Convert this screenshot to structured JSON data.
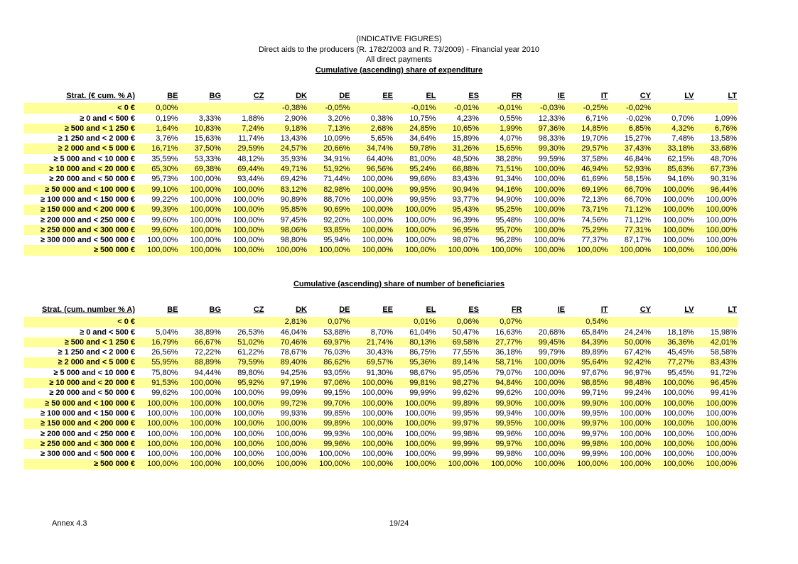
{
  "header": {
    "line1": "(INDICATIVE FIGURES)",
    "line2": "Direct aids to the producers (R. 1782/2003 and R. 73/2009) - Financial year 2010",
    "line3": "All direct payments",
    "title": "Cumulative (ascending) share of expenditure"
  },
  "countries": [
    "BE",
    "BG",
    "CZ",
    "DK",
    "DE",
    "EE",
    "EL",
    "ES",
    "FR",
    "IE",
    "IT",
    "CY",
    "LV",
    "LT"
  ],
  "table1": {
    "label_header": "Strat. (€ cum. % A)",
    "rows": [
      {
        "label": "< 0 €",
        "values": [
          "0,00%",
          "",
          "",
          "-0,38%",
          "-0,05%",
          "",
          "-0,01%",
          "-0,01%",
          "-0,01%",
          "-0,03%",
          "-0,25%",
          "-0,02%",
          "",
          ""
        ]
      },
      {
        "label": "≥ 0 and <  500 €",
        "values": [
          "0,19%",
          "3,33%",
          "1,88%",
          "2,90%",
          "3,20%",
          "0,38%",
          "10,75%",
          "4,23%",
          "0,55%",
          "12,33%",
          "6,71%",
          "-0,02%",
          "0,70%",
          "1,09%"
        ]
      },
      {
        "label": "≥ 500 and < 1 250 €",
        "values": [
          "1,64%",
          "10,83%",
          "7,24%",
          "9,18%",
          "7,13%",
          "2,68%",
          "24,85%",
          "10,65%",
          "1,99%",
          "97,36%",
          "14,85%",
          "6,85%",
          "4,32%",
          "6,76%"
        ]
      },
      {
        "label": "≥ 1 250 and < 2 000 €",
        "values": [
          "3,76%",
          "15,63%",
          "11,74%",
          "13,43%",
          "10,09%",
          "5,65%",
          "34,64%",
          "15,89%",
          "4,07%",
          "98,33%",
          "19,70%",
          "15,27%",
          "7,48%",
          "13,58%"
        ]
      },
      {
        "label": "≥ 2 000 and < 5 000 €",
        "values": [
          "16,71%",
          "37,50%",
          "29,59%",
          "24,57%",
          "20,66%",
          "34,74%",
          "59,78%",
          "31,26%",
          "15,65%",
          "99,30%",
          "29,57%",
          "37,43%",
          "33,18%",
          "33,68%"
        ]
      },
      {
        "label": "≥ 5 000 and < 10 000 €",
        "values": [
          "35,59%",
          "53,33%",
          "48,12%",
          "35,93%",
          "34,91%",
          "64,40%",
          "81,00%",
          "48,50%",
          "38,28%",
          "99,59%",
          "37,58%",
          "46,84%",
          "62,15%",
          "48,70%"
        ]
      },
      {
        "label": "≥ 10 000 and < 20 000 €",
        "values": [
          "65,30%",
          "69,38%",
          "69,44%",
          "49,71%",
          "51,92%",
          "96,56%",
          "95,24%",
          "66,88%",
          "71,51%",
          "100,00%",
          "46,94%",
          "52,93%",
          "85,63%",
          "67,73%"
        ]
      },
      {
        "label": "≥ 20 000 and < 50 000 €",
        "values": [
          "95,73%",
          "100,00%",
          "93,44%",
          "69,42%",
          "71,44%",
          "100,00%",
          "99,66%",
          "83,43%",
          "91,34%",
          "100,00%",
          "61,69%",
          "58,15%",
          "94,16%",
          "90,31%"
        ]
      },
      {
        "label": "≥ 50 000 and < 100 000 €",
        "values": [
          "99,10%",
          "100,00%",
          "100,00%",
          "83,12%",
          "82,98%",
          "100,00%",
          "99,95%",
          "90,94%",
          "94,16%",
          "100,00%",
          "69,19%",
          "66,70%",
          "100,00%",
          "96,44%"
        ]
      },
      {
        "label": "≥ 100 000 and < 150 000 €",
        "values": [
          "99,22%",
          "100,00%",
          "100,00%",
          "90,89%",
          "88,70%",
          "100,00%",
          "99,95%",
          "93,77%",
          "94,90%",
          "100,00%",
          "72,13%",
          "66,70%",
          "100,00%",
          "100,00%"
        ]
      },
      {
        "label": "≥ 150 000 and < 200 000 €",
        "values": [
          "99,39%",
          "100,00%",
          "100,00%",
          "95,85%",
          "90,69%",
          "100,00%",
          "100,00%",
          "95,43%",
          "95,25%",
          "100,00%",
          "73,71%",
          "71,12%",
          "100,00%",
          "100,00%"
        ]
      },
      {
        "label": "≥ 200 000 and < 250 000 €",
        "values": [
          "99,60%",
          "100,00%",
          "100,00%",
          "97,45%",
          "92,20%",
          "100,00%",
          "100,00%",
          "96,39%",
          "95,48%",
          "100,00%",
          "74,56%",
          "71,12%",
          "100,00%",
          "100,00%"
        ]
      },
      {
        "label": "≥ 250 000 and < 300 000 €",
        "values": [
          "99,60%",
          "100,00%",
          "100,00%",
          "98,06%",
          "93,85%",
          "100,00%",
          "100,00%",
          "96,95%",
          "95,70%",
          "100,00%",
          "75,29%",
          "77,31%",
          "100,00%",
          "100,00%"
        ]
      },
      {
        "label": "≥ 300 000 and < 500 000 €",
        "values": [
          "100,00%",
          "100,00%",
          "100,00%",
          "98,80%",
          "95,94%",
          "100,00%",
          "100,00%",
          "98,07%",
          "96,28%",
          "100,00%",
          "77,37%",
          "87,17%",
          "100,00%",
          "100,00%"
        ]
      },
      {
        "label": "≥ 500 000 €",
        "values": [
          "100,00%",
          "100,00%",
          "100,00%",
          "100,00%",
          "100,00%",
          "100,00%",
          "100,00%",
          "100,00%",
          "100,00%",
          "100,00%",
          "100,00%",
          "100,00%",
          "100,00%",
          "100,00%"
        ]
      }
    ]
  },
  "table2": {
    "title": "Cumulative (ascending) share of number of beneficiaries",
    "label_header": "Strat. (cum. number % A)",
    "rows": [
      {
        "label": "< 0 €",
        "values": [
          "",
          "",
          "",
          "2,81%",
          "0,07%",
          "",
          "0,01%",
          "0,06%",
          "0,07%",
          "",
          "0,54%",
          "",
          "",
          ""
        ]
      },
      {
        "label": "≥ 0 and <  500 €",
        "values": [
          "5,04%",
          "38,89%",
          "26,53%",
          "46,04%",
          "53,88%",
          "8,70%",
          "61,04%",
          "50,47%",
          "16,63%",
          "20,68%",
          "65,84%",
          "24,24%",
          "18,18%",
          "15,98%"
        ]
      },
      {
        "label": "≥ 500 and < 1 250 €",
        "values": [
          "16,79%",
          "66,67%",
          "51,02%",
          "70,46%",
          "69,97%",
          "21,74%",
          "80,13%",
          "69,58%",
          "27,77%",
          "99,45%",
          "84,39%",
          "50,00%",
          "36,36%",
          "42,01%"
        ]
      },
      {
        "label": "≥ 1 250 and < 2 000 €",
        "values": [
          "26,56%",
          "72,22%",
          "61,22%",
          "78,67%",
          "76,03%",
          "30,43%",
          "86,75%",
          "77,55%",
          "36,18%",
          "99,79%",
          "89,89%",
          "67,42%",
          "45,45%",
          "58,58%"
        ]
      },
      {
        "label": "≥ 2 000 and < 5 000 €",
        "values": [
          "55,95%",
          "88,89%",
          "79,59%",
          "89,40%",
          "86,62%",
          "69,57%",
          "95,36%",
          "89,14%",
          "58,71%",
          "100,00%",
          "95,64%",
          "92,42%",
          "77,27%",
          "83,43%"
        ]
      },
      {
        "label": "≥ 5 000 and < 10 000 €",
        "values": [
          "75,80%",
          "94,44%",
          "89,80%",
          "94,25%",
          "93,05%",
          "91,30%",
          "98,67%",
          "95,05%",
          "79,07%",
          "100,00%",
          "97,67%",
          "96,97%",
          "95,45%",
          "91,72%"
        ]
      },
      {
        "label": "≥ 10 000 and < 20 000 €",
        "values": [
          "91,53%",
          "100,00%",
          "95,92%",
          "97,19%",
          "97,06%",
          "100,00%",
          "99,81%",
          "98,27%",
          "94,84%",
          "100,00%",
          "98,85%",
          "98,48%",
          "100,00%",
          "96,45%"
        ]
      },
      {
        "label": "≥ 20 000 and < 50 000 €",
        "values": [
          "99,62%",
          "100,00%",
          "100,00%",
          "99,09%",
          "99,15%",
          "100,00%",
          "99,99%",
          "99,62%",
          "99,62%",
          "100,00%",
          "99,71%",
          "99,24%",
          "100,00%",
          "99,41%"
        ]
      },
      {
        "label": "≥ 50 000 and < 100 000 €",
        "values": [
          "100,00%",
          "100,00%",
          "100,00%",
          "99,72%",
          "99,70%",
          "100,00%",
          "100,00%",
          "99,89%",
          "99,90%",
          "100,00%",
          "99,90%",
          "100,00%",
          "100,00%",
          "100,00%"
        ]
      },
      {
        "label": "≥ 100 000 and < 150 000 €",
        "values": [
          "100,00%",
          "100,00%",
          "100,00%",
          "99,93%",
          "99,85%",
          "100,00%",
          "100,00%",
          "99,95%",
          "99,94%",
          "100,00%",
          "99,95%",
          "100,00%",
          "100,00%",
          "100,00%"
        ]
      },
      {
        "label": "≥ 150 000 and < 200 000 €",
        "values": [
          "100,00%",
          "100,00%",
          "100,00%",
          "100,00%",
          "99,89%",
          "100,00%",
          "100,00%",
          "99,97%",
          "99,95%",
          "100,00%",
          "99,97%",
          "100,00%",
          "100,00%",
          "100,00%"
        ]
      },
      {
        "label": "≥ 200 000 and < 250 000 €",
        "values": [
          "100,00%",
          "100,00%",
          "100,00%",
          "100,00%",
          "99,93%",
          "100,00%",
          "100,00%",
          "99,98%",
          "99,96%",
          "100,00%",
          "99,97%",
          "100,00%",
          "100,00%",
          "100,00%"
        ]
      },
      {
        "label": "≥ 250 000 and < 300 000 €",
        "values": [
          "100,00%",
          "100,00%",
          "100,00%",
          "100,00%",
          "99,96%",
          "100,00%",
          "100,00%",
          "99,99%",
          "99,97%",
          "100,00%",
          "99,98%",
          "100,00%",
          "100,00%",
          "100,00%"
        ]
      },
      {
        "label": "≥ 300 000 and < 500 000 €",
        "values": [
          "100,00%",
          "100,00%",
          "100,00%",
          "100,00%",
          "100,00%",
          "100,00%",
          "100,00%",
          "99,99%",
          "99,98%",
          "100,00%",
          "99,99%",
          "100,00%",
          "100,00%",
          "100,00%"
        ]
      },
      {
        "label": "≥ 500 000 €",
        "values": [
          "100,00%",
          "100,00%",
          "100,00%",
          "100,00%",
          "100,00%",
          "100,00%",
          "100,00%",
          "100,00%",
          "100,00%",
          "100,00%",
          "100,00%",
          "100,00%",
          "100,00%",
          "100,00%"
        ]
      }
    ]
  },
  "footer": {
    "annex": "Annex 4.3",
    "page": "19/24"
  },
  "colors": {
    "highlight": "#ffff99"
  }
}
